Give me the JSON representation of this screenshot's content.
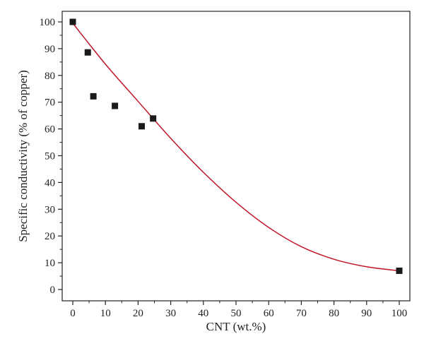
{
  "chart_data": {
    "type": "scatter",
    "xlabel": "CNT (wt.%)",
    "ylabel": "Specific conductivity (% of copper)",
    "xlim": [
      0,
      100
    ],
    "ylim": [
      0,
      100
    ],
    "xticks": [
      0,
      10,
      20,
      30,
      40,
      50,
      60,
      70,
      80,
      90,
      100
    ],
    "yticks": [
      0,
      10,
      20,
      30,
      40,
      50,
      60,
      70,
      80,
      90,
      100
    ],
    "grid": false,
    "series": [
      {
        "kind": "scatter",
        "marker": "square",
        "color": "#1a1a1a",
        "points": [
          {
            "x": 0,
            "y": 100
          },
          {
            "x": 4.6,
            "y": 88.6
          },
          {
            "x": 6.3,
            "y": 72.2
          },
          {
            "x": 12.9,
            "y": 68.6
          },
          {
            "x": 21.1,
            "y": 61.0
          },
          {
            "x": 24.6,
            "y": 63.9
          },
          {
            "x": 100,
            "y": 7.0
          }
        ]
      },
      {
        "kind": "line",
        "color": "#c0162a",
        "points": [
          {
            "x": 0,
            "y": 99.5
          },
          {
            "x": 10,
            "y": 84.2
          },
          {
            "x": 20,
            "y": 70.3
          },
          {
            "x": 30,
            "y": 56.5
          },
          {
            "x": 40,
            "y": 43.8
          },
          {
            "x": 50,
            "y": 32.6
          },
          {
            "x": 60,
            "y": 23.2
          },
          {
            "x": 70,
            "y": 16.0
          },
          {
            "x": 80,
            "y": 11.3
          },
          {
            "x": 90,
            "y": 8.5
          },
          {
            "x": 100,
            "y": 7.0
          }
        ]
      }
    ]
  }
}
